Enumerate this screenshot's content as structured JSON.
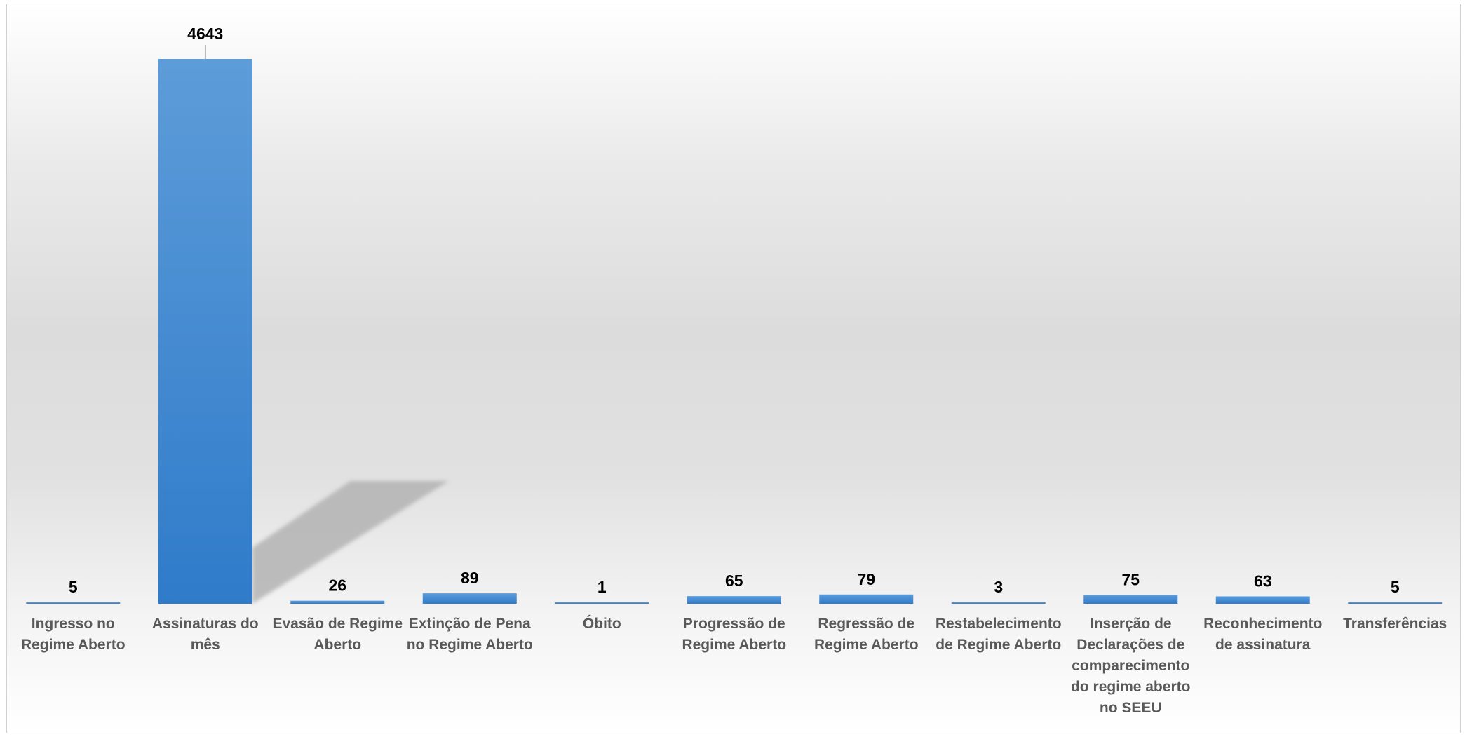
{
  "chart_data": {
    "type": "bar",
    "title": "",
    "xlabel": "",
    "ylabel": "",
    "ylim": [
      0,
      4643
    ],
    "grid": false,
    "legend": "none",
    "colors": {
      "bar_top": "#5d9cd9",
      "bar_bottom": "#2f7bca",
      "shadow": "#b3b3b3",
      "value_label": "#000000",
      "category_label": "#595959"
    },
    "categories": [
      [
        "Ingresso no",
        "Regime Aberto"
      ],
      [
        "Assinaturas do",
        "mês"
      ],
      [
        "Evasão de Regime",
        "Aberto"
      ],
      [
        "Extinção de Pena",
        "no Regime Aberto"
      ],
      [
        "Óbito"
      ],
      [
        "Progressão de",
        "Regime Aberto"
      ],
      [
        "Regressão de",
        "Regime Aberto"
      ],
      [
        "Restabelecimento",
        "de Regime Aberto"
      ],
      [
        "Inserção de",
        "Declarações de",
        "comparecimento",
        "do regime aberto",
        "no SEEU"
      ],
      [
        "Reconhecimento",
        "de assinatura"
      ],
      [
        "Transferências"
      ]
    ],
    "values": [
      5,
      4643,
      26,
      89,
      1,
      65,
      79,
      3,
      75,
      63,
      5
    ],
    "data_labels": [
      "5",
      "4643",
      "26",
      "89",
      "1",
      "65",
      "79",
      "3",
      "75",
      "63",
      "5"
    ]
  }
}
